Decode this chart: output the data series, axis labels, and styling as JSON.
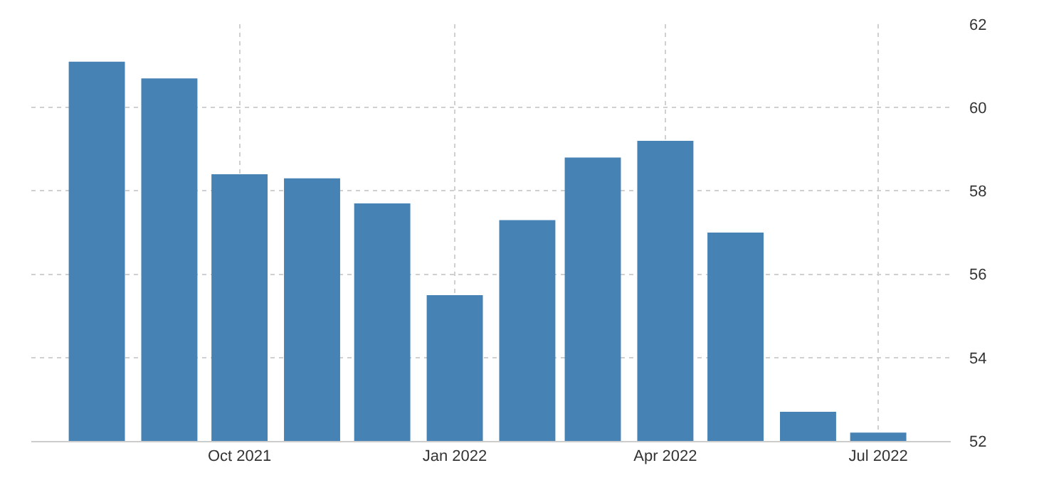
{
  "chart_data": {
    "type": "bar",
    "x": [
      "2021-08",
      "2021-09",
      "2021-10",
      "2021-11",
      "2021-12",
      "2022-01",
      "2022-02",
      "2022-03",
      "2022-04",
      "2022-05",
      "2022-06",
      "2022-07"
    ],
    "values": [
      61.1,
      60.7,
      58.4,
      58.3,
      57.7,
      55.5,
      57.3,
      58.8,
      59.2,
      57.0,
      52.7,
      52.2
    ],
    "color": "#4682b4",
    "xlim": [
      "2021-07-04",
      "2022-08-01"
    ],
    "xticks": [
      {
        "value": "2021-10",
        "label": "Oct 2021"
      },
      {
        "value": "2022-01",
        "label": "Jan 2022"
      },
      {
        "value": "2022-04",
        "label": "Apr 2022"
      },
      {
        "value": "2022-07",
        "label": "Jul 2022"
      }
    ],
    "ylim": [
      52,
      62
    ],
    "yticks": [
      52,
      54,
      56,
      58,
      60,
      62
    ],
    "grid": true
  }
}
